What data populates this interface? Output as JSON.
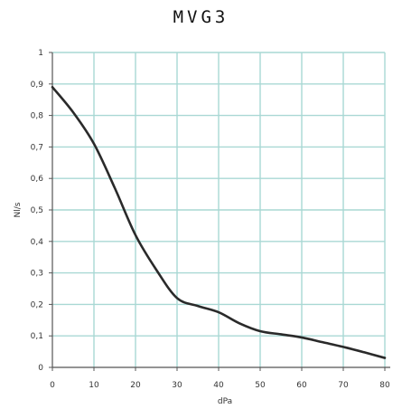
{
  "chart_data": {
    "type": "line",
    "title": "MVG3",
    "xlabel": "dPa",
    "ylabel": "Nl/s",
    "xlim": [
      0,
      80
    ],
    "ylim": [
      0,
      1
    ],
    "xticks": [
      "0",
      "10",
      "20",
      "30",
      "40",
      "50",
      "60",
      "70",
      "80"
    ],
    "yticks": [
      "0",
      "0,1",
      "0,2",
      "0,3",
      "0,4",
      "0,5",
      "0,6",
      "0,7",
      "0,8",
      "0,9",
      "1"
    ],
    "grid": true,
    "series": [
      {
        "x": [
          0,
          5,
          10,
          15,
          20,
          25,
          30,
          35,
          40,
          45,
          50,
          55,
          60,
          65,
          70,
          75,
          80
        ],
        "values": [
          0.89,
          0.81,
          0.71,
          0.57,
          0.42,
          0.31,
          0.22,
          0.195,
          0.175,
          0.14,
          0.115,
          0.105,
          0.095,
          0.08,
          0.065,
          0.048,
          0.03
        ],
        "color": "#2a2a2a"
      }
    ],
    "colors": {
      "grid": "#a9d8d4",
      "axis": "#555555",
      "line": "#2a2a2a"
    }
  }
}
